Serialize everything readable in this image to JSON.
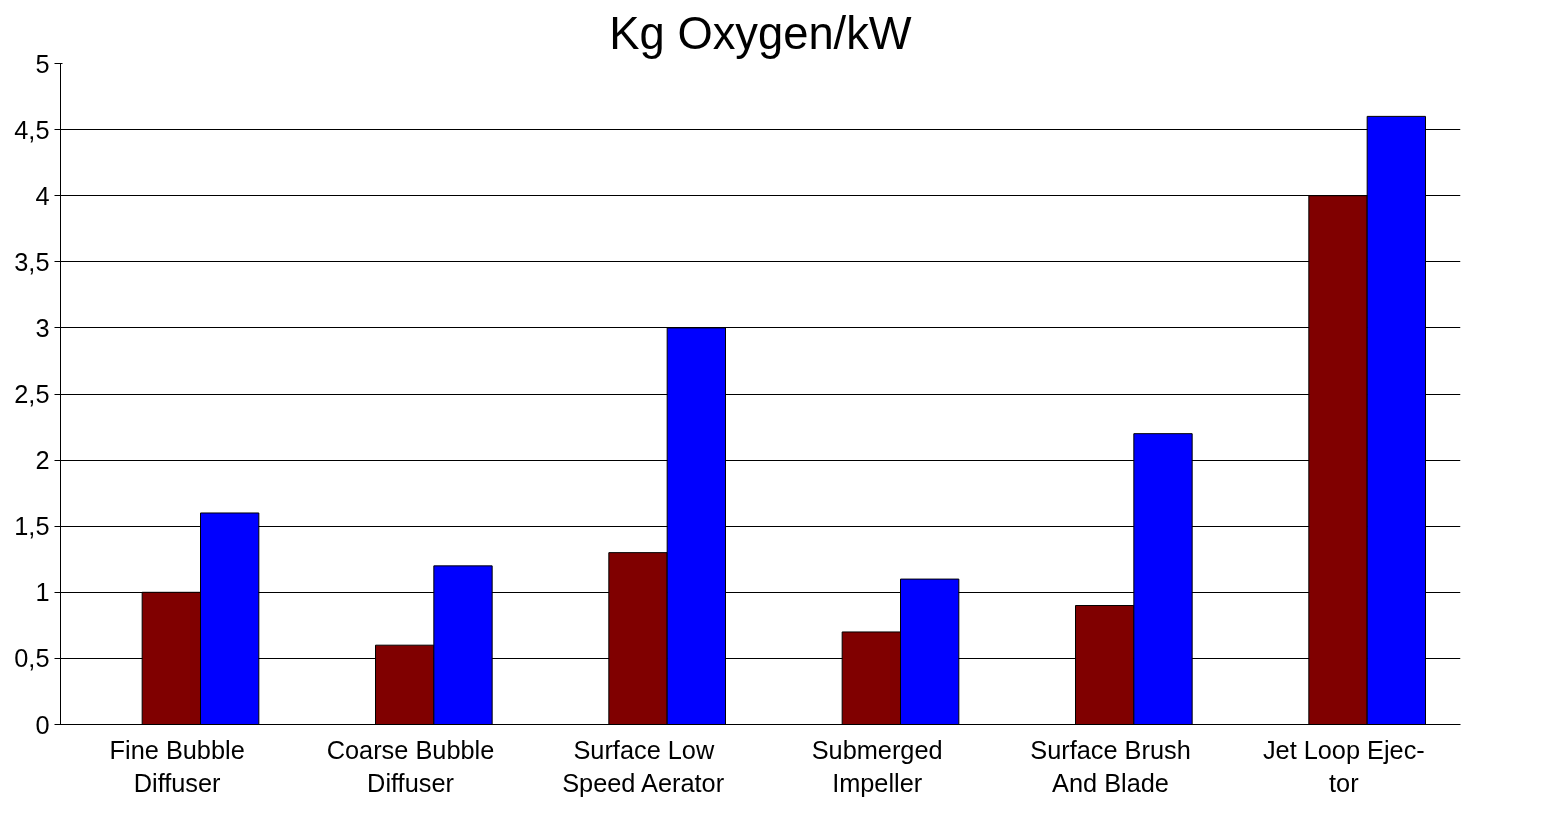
{
  "chart_data": {
    "type": "bar",
    "title": "Kg Oxygen/kW",
    "categories": [
      "Fine Bubble\nDiffuser",
      "Coarse Bubble\nDiffuser",
      "Surface Low\nSpeed Aerator",
      "Submerged\nImpeller",
      "Surface Brush\nAnd Blade",
      "Jet Loop Ejec-\ntor"
    ],
    "series": [
      {
        "color": "#800000",
        "values": [
          1,
          0.6,
          1.3,
          0.7,
          0.9,
          4
        ]
      },
      {
        "color": "#0000ff",
        "values": [
          1.6,
          1.2,
          3,
          1.1,
          2.2,
          4.6
        ]
      }
    ],
    "ylim": [
      0,
      5
    ],
    "yticks": [
      0,
      {
        "value": 0.5,
        "label": "0,5"
      },
      1,
      {
        "value": 1.5,
        "label": "1,5"
      },
      2,
      {
        "value": 2.5,
        "label": "2,5"
      },
      3,
      {
        "value": 3.5,
        "label": "3,5"
      },
      4,
      {
        "value": 4.5,
        "label": "4,5"
      },
      5
    ],
    "grid": "y"
  }
}
